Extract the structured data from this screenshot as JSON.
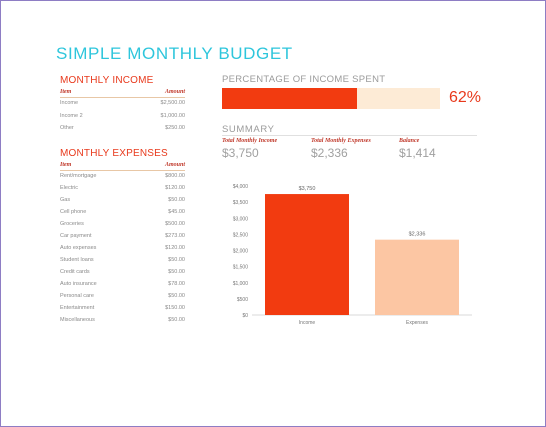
{
  "title": "SIMPLE MONTHLY BUDGET",
  "income": {
    "heading": "MONTHLY INCOME",
    "col_item": "Item",
    "col_amount": "Amount",
    "rows": [
      {
        "item": "Income",
        "amount": "$2,500.00"
      },
      {
        "item": "Income 2",
        "amount": "$1,000.00"
      },
      {
        "item": "Other",
        "amount": "$250.00"
      }
    ]
  },
  "expenses": {
    "heading": "MONTHLY EXPENSES",
    "col_item": "Item",
    "col_amount": "Amount",
    "rows": [
      {
        "item": "Rent/mortgage",
        "amount": "$800.00"
      },
      {
        "item": "Electric",
        "amount": "$120.00"
      },
      {
        "item": "Gas",
        "amount": "$50.00"
      },
      {
        "item": "Cell phone",
        "amount": "$45.00"
      },
      {
        "item": "Groceries",
        "amount": "$500.00"
      },
      {
        "item": "Car payment",
        "amount": "$273.00"
      },
      {
        "item": "Auto expenses",
        "amount": "$120.00"
      },
      {
        "item": "Student loans",
        "amount": "$50.00"
      },
      {
        "item": "Credit cards",
        "amount": "$50.00"
      },
      {
        "item": "Auto insurance",
        "amount": "$78.00"
      },
      {
        "item": "Personal care",
        "amount": "$50.00"
      },
      {
        "item": "Entertainment",
        "amount": "$150.00"
      },
      {
        "item": "Miscellaneous",
        "amount": "$50.00"
      }
    ]
  },
  "percentage": {
    "label": "PERCENTAGE OF INCOME SPENT",
    "value_text": "62%",
    "fraction": 0.62
  },
  "summary": {
    "label": "SUMMARY",
    "total_income_label": "Total Monthly Income",
    "total_income": "$3,750",
    "total_expenses_label": "Total Monthly Expenses",
    "total_expenses": "$2,336",
    "balance_label": "Balance",
    "balance": "$1,414"
  },
  "colors": {
    "accent": "#e8391c",
    "title": "#2ec6dc",
    "income_bar": "#f23b10",
    "expense_bar": "#fcc6a3",
    "track": "#fdebd6"
  },
  "chart_data": {
    "type": "bar",
    "categories": [
      "Income",
      "Expenses"
    ],
    "values": [
      3750,
      2336
    ],
    "data_labels": [
      "$3,750",
      "$2,336"
    ],
    "y_ticks": [
      "$0",
      "$500",
      "$1,000",
      "$1,500",
      "$2,000",
      "$2,500",
      "$3,000",
      "$3,500",
      "$4,000"
    ],
    "y_values": [
      0,
      500,
      1000,
      1500,
      2000,
      2500,
      3000,
      3500,
      4000
    ],
    "ylim": [
      0,
      4000
    ],
    "grid": false,
    "legend": "none"
  }
}
